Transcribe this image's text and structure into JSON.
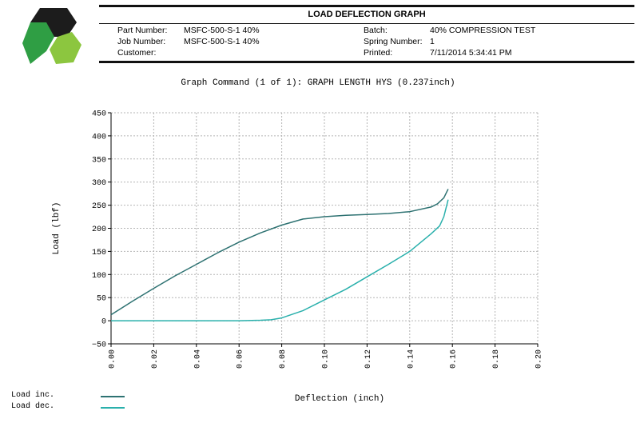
{
  "header": {
    "title": "LOAD DEFLECTION GRAPH",
    "left_fields": [
      {
        "label": "Part Number:",
        "value": "MSFC-500-S-1 40%"
      },
      {
        "label": "Job Number:",
        "value": "MSFC-500-S-1 40%"
      },
      {
        "label": "Customer:",
        "value": ""
      }
    ],
    "right_fields": [
      {
        "label": "Batch:",
        "value": "40% COMPRESSION TEST"
      },
      {
        "label": "Spring Number:",
        "value": "1"
      },
      {
        "label": "Printed:",
        "value": "7/11/2014 5:34:41 PM"
      }
    ]
  },
  "logo_colors": {
    "dark": "#1c1c1c",
    "green": "#2f9e44",
    "lime": "#8cc63f"
  },
  "chart_data": {
    "type": "line",
    "title": "Graph Command (1 of 1): GRAPH LENGTH HYS (0.237inch)",
    "xlabel": "Deflection (inch)",
    "ylabel": "Load (lbf)",
    "xlim": [
      0,
      0.2
    ],
    "ylim": [
      -50,
      450
    ],
    "xticks": [
      "0.00",
      "0.02",
      "0.04",
      "0.06",
      "0.08",
      "0.10",
      "0.12",
      "0.14",
      "0.16",
      "0.18",
      "0.20"
    ],
    "yticks": [
      "450",
      "400",
      "350",
      "300",
      "250",
      "200",
      "150",
      "100",
      "50",
      "0",
      "−50"
    ],
    "grid": true,
    "legend_position": "bottom-left",
    "series": [
      {
        "name": "Load inc.",
        "color": "#2e7272",
        "x": [
          0.0,
          0.01,
          0.02,
          0.03,
          0.04,
          0.05,
          0.06,
          0.07,
          0.08,
          0.09,
          0.1,
          0.11,
          0.12,
          0.13,
          0.14,
          0.15,
          0.153,
          0.156,
          0.158
        ],
        "y": [
          13,
          42,
          70,
          97,
          122,
          147,
          170,
          190,
          207,
          220,
          225,
          228,
          230,
          232,
          236,
          246,
          253,
          266,
          285
        ]
      },
      {
        "name": "Load dec.",
        "color": "#2ab0ac",
        "x": [
          0.158,
          0.156,
          0.154,
          0.15,
          0.14,
          0.13,
          0.12,
          0.11,
          0.1,
          0.09,
          0.08,
          0.075,
          0.07,
          0.06,
          0.04,
          0.02,
          0.0
        ],
        "y": [
          262,
          225,
          205,
          188,
          150,
          122,
          95,
          68,
          45,
          22,
          6,
          2,
          1,
          0,
          0,
          0,
          0
        ]
      }
    ]
  }
}
